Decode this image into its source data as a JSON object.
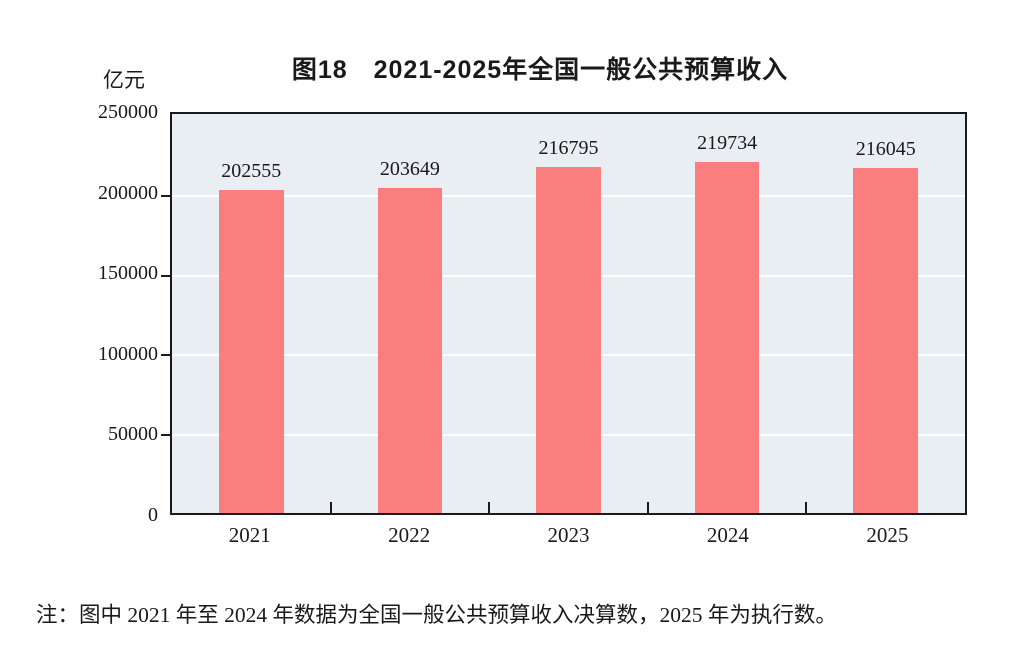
{
  "chart_data": {
    "type": "bar",
    "title": "图18　2021-2025年全国一般公共预算收入",
    "unit_label": "亿元",
    "categories": [
      "2021",
      "2022",
      "2023",
      "2024",
      "2025"
    ],
    "values": [
      202555,
      203649,
      216795,
      219734,
      216045
    ],
    "value_labels": [
      "202555",
      "203649",
      "216795",
      "219734",
      "216045"
    ],
    "ylim": [
      0,
      250000
    ],
    "yticks": [
      0,
      50000,
      100000,
      150000,
      200000,
      250000
    ],
    "ytick_labels": [
      "0",
      "50000",
      "100000",
      "150000",
      "200000",
      "250000"
    ],
    "grid": true,
    "legend": "none",
    "colors": {
      "bar": "#FA7E7E",
      "plot_background": "#E9EEF3",
      "gridline": "#FFFFFF",
      "axis": "#1A1A1A",
      "text": "#1A1A1A",
      "page_background": "#FFFFFF"
    }
  },
  "note": "注：图中 2021 年至 2024 年数据为全国一般公共预算收入决算数，2025 年为执行数。"
}
